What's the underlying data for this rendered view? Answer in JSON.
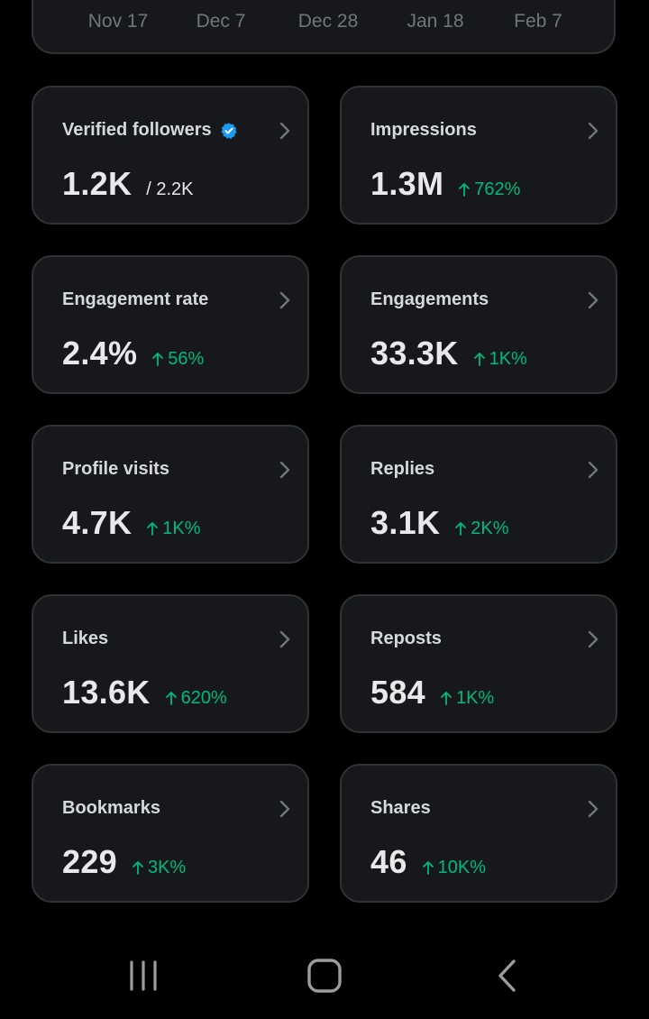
{
  "chart": {
    "x_ticks": [
      "Nov 17",
      "Dec 7",
      "Dec 28",
      "Jan 18",
      "Feb 7"
    ]
  },
  "colors": {
    "background": "#000000",
    "card": "#16181c",
    "card_border": "#2f3336",
    "positive": "#00ba7c",
    "verified": "#1d9bf0"
  },
  "metrics": [
    {
      "title": "Verified followers",
      "value": "1.2K",
      "sub": "/ 2.2K",
      "verified_icon": "verified-badge-icon"
    },
    {
      "title": "Impressions",
      "value": "1.3M",
      "change": "762%"
    },
    {
      "title": "Engagement rate",
      "value": "2.4%",
      "change": "56%"
    },
    {
      "title": "Engagements",
      "value": "33.3K",
      "change": "1K%"
    },
    {
      "title": "Profile visits",
      "value": "4.7K",
      "change": "1K%"
    },
    {
      "title": "Replies",
      "value": "3.1K",
      "change": "2K%"
    },
    {
      "title": "Likes",
      "value": "13.6K",
      "change": "620%"
    },
    {
      "title": "Reposts",
      "value": "584",
      "change": "1K%"
    },
    {
      "title": "Bookmarks",
      "value": "229",
      "change": "3K%"
    },
    {
      "title": "Shares",
      "value": "46",
      "change": "10K%"
    }
  ],
  "navbar": {
    "icons": [
      "recent-apps-icon",
      "home-icon",
      "back-icon"
    ]
  }
}
